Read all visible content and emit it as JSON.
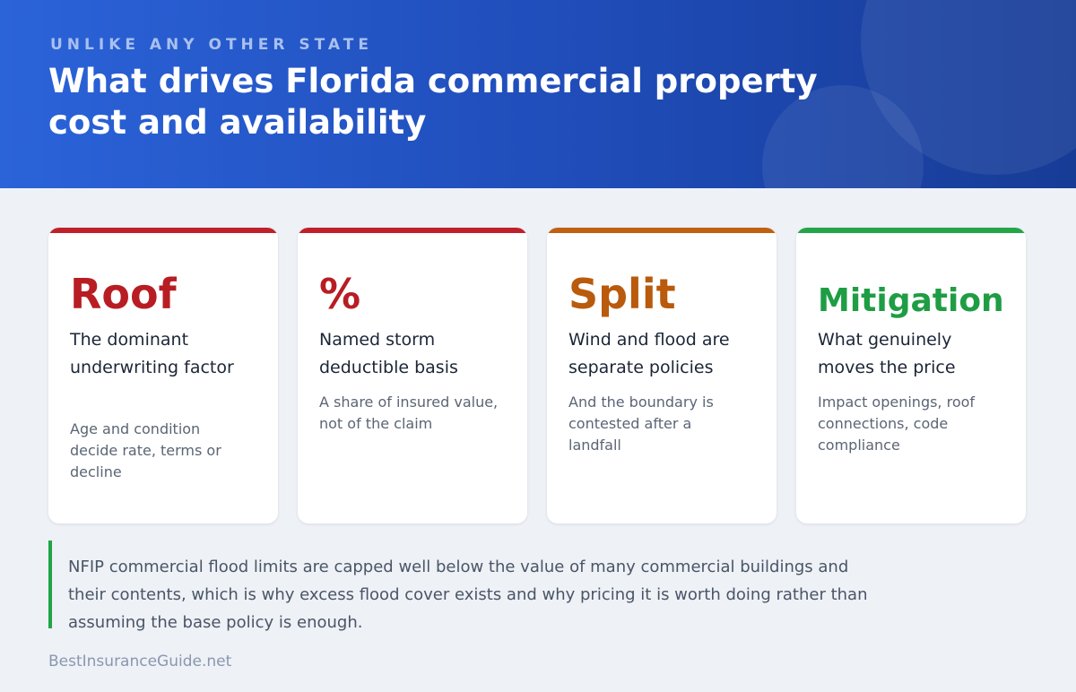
{
  "header": {
    "eyebrow": "UNLIKE ANY OTHER STATE",
    "title": "What drives Florida commercial property cost and availability"
  },
  "cards": [
    {
      "big": "Roof",
      "heading": "The dominant underwriting factor",
      "description": "Age and condition decide rate, terms or decline",
      "color": "#b81d24"
    },
    {
      "big": "%",
      "heading": "Named storm deductible basis",
      "description": "A share of insured value, not of the claim",
      "color": "#b81d24"
    },
    {
      "big": "Split",
      "heading": "Wind and flood are separate policies",
      "description": "And the boundary is contested after a landfall",
      "color": "#b95a0c"
    },
    {
      "big": "Mitigation",
      "heading": "What genuinely moves the price",
      "description": "Impact openings, roof connections, code compliance",
      "color": "#1f9d44"
    }
  ],
  "note": {
    "text": "NFIP commercial flood limits are capped well below the value of many commercial buildings and their contents, which is why excess flood cover exists and why pricing it is worth doing rather than assuming the base policy is enough.",
    "accent_color": "#22a447"
  },
  "footer": {
    "brand": "BestInsuranceGuide.net"
  }
}
